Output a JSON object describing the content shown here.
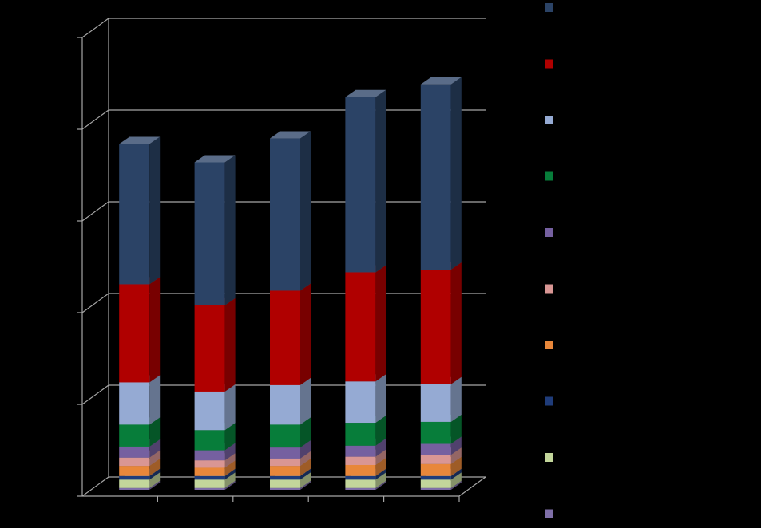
{
  "chart_data": {
    "type": "bar",
    "stacked": true,
    "three_d": true,
    "categories": [
      "",
      "",
      "",
      "",
      ""
    ],
    "ylim": [
      0,
      500
    ],
    "grid": true,
    "legend_placement": "right",
    "series": [
      {
        "color": "#7f6fa8",
        "values": [
          2,
          2,
          2,
          2,
          2
        ]
      },
      {
        "color": "#c3d69b",
        "values": [
          9,
          9,
          9,
          9,
          9
        ]
      },
      {
        "color": "#1f3c7a",
        "values": [
          4,
          4,
          4,
          4,
          4
        ]
      },
      {
        "color": "#e8873a",
        "values": [
          11,
          9,
          11,
          12,
          13
        ]
      },
      {
        "color": "#d99694",
        "values": [
          9,
          8,
          8,
          9,
          10
        ]
      },
      {
        "color": "#7560a0",
        "values": [
          12,
          11,
          12,
          12,
          12
        ]
      },
      {
        "color": "#077d3a",
        "values": [
          24,
          22,
          25,
          25,
          24
        ]
      },
      {
        "color": "#95aad3",
        "values": [
          46,
          42,
          43,
          45,
          41
        ]
      },
      {
        "color": "#b00000",
        "values": [
          107,
          94,
          103,
          119,
          125
        ]
      },
      {
        "color": "#2b4366",
        "values": [
          153,
          156,
          166,
          191,
          202
        ]
      }
    ],
    "legend_order": [
      9,
      8,
      7,
      6,
      5,
      4,
      3,
      2,
      1,
      0
    ]
  }
}
